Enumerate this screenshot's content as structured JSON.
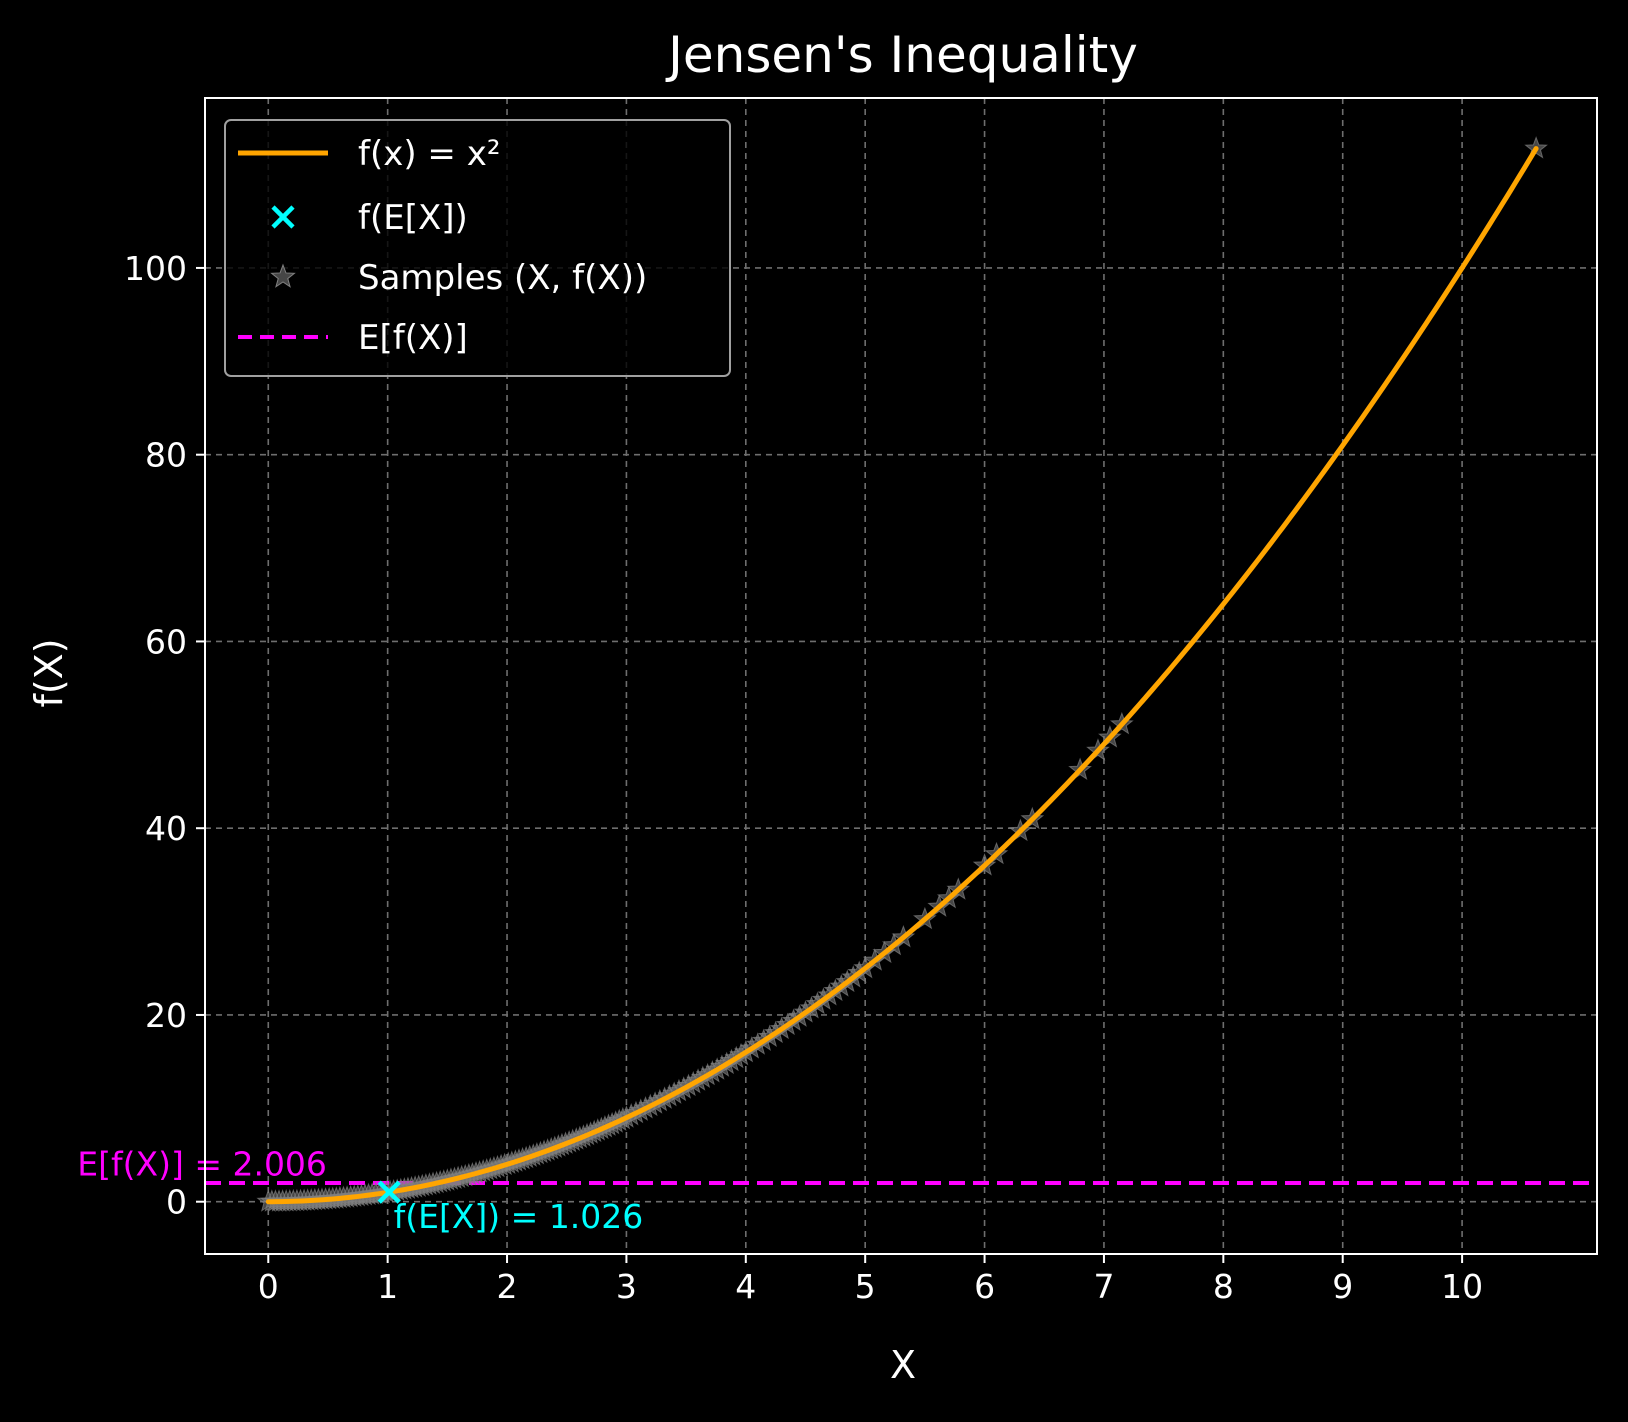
{
  "chart_data": {
    "type": "line",
    "title": "Jensen's Inequality",
    "xlabel": "X",
    "ylabel": "f(X)",
    "xlim": [
      -0.53,
      11.13
    ],
    "ylim": [
      -5.6,
      118.2
    ],
    "x_ticks": [
      0,
      1,
      2,
      3,
      4,
      5,
      6,
      7,
      8,
      9,
      10
    ],
    "y_ticks": [
      0,
      20,
      40,
      60,
      80,
      100
    ],
    "grid": true,
    "legend_position": "top-left",
    "colors": {
      "background": "#000000",
      "curve": "#ffa500",
      "expectation_point": "#00ffff",
      "samples": "#808080",
      "mean_line": "#ff00ff",
      "grid": "#6e6e6e",
      "text": "#ffffff"
    },
    "series": [
      {
        "name": "f(x) = x²",
        "kind": "line",
        "function": "x^2",
        "x_range": [
          0,
          10.62
        ]
      },
      {
        "name": "f(E[X])",
        "kind": "marker",
        "marker": "x",
        "points": [
          {
            "x": 1.013,
            "y": 1.026
          }
        ]
      },
      {
        "name": "Samples (X, f(X))",
        "kind": "scatter",
        "marker": "star",
        "x": [
          0.0,
          0.03,
          0.06,
          0.09,
          0.12,
          0.15,
          0.18,
          0.21,
          0.24,
          0.27,
          0.3,
          0.33,
          0.36,
          0.39,
          0.42,
          0.45,
          0.48,
          0.51,
          0.54,
          0.57,
          0.6,
          0.63,
          0.66,
          0.69,
          0.72,
          0.75,
          0.78,
          0.81,
          0.84,
          0.87,
          0.9,
          0.93,
          0.96,
          0.99,
          1.02,
          1.05,
          1.08,
          1.11,
          1.14,
          1.17,
          1.2,
          1.23,
          1.26,
          1.29,
          1.32,
          1.35,
          1.38,
          1.41,
          1.44,
          1.47,
          1.5,
          1.53,
          1.56,
          1.59,
          1.62,
          1.65,
          1.68,
          1.71,
          1.74,
          1.77,
          1.8,
          1.83,
          1.86,
          1.89,
          1.92,
          1.95,
          1.98,
          2.01,
          2.04,
          2.07,
          2.1,
          2.13,
          2.16,
          2.19,
          2.22,
          2.25,
          2.28,
          2.31,
          2.34,
          2.37,
          2.4,
          2.43,
          2.46,
          2.49,
          2.52,
          2.55,
          2.58,
          2.61,
          2.64,
          2.67,
          2.7,
          2.73,
          2.76,
          2.79,
          2.82,
          2.85,
          2.88,
          2.91,
          2.94,
          2.97,
          3.0,
          3.04,
          3.08,
          3.12,
          3.16,
          3.2,
          3.24,
          3.28,
          3.32,
          3.36,
          3.4,
          3.44,
          3.48,
          3.52,
          3.56,
          3.6,
          3.64,
          3.68,
          3.72,
          3.76,
          3.8,
          3.84,
          3.88,
          3.92,
          3.96,
          4.0,
          4.05,
          4.1,
          4.15,
          4.2,
          4.25,
          4.3,
          4.35,
          4.4,
          4.45,
          4.5,
          4.55,
          4.6,
          4.65,
          4.7,
          4.75,
          4.8,
          4.85,
          4.9,
          4.95,
          5.0,
          5.08,
          5.16,
          5.24,
          5.32,
          5.5,
          5.62,
          5.7,
          5.78,
          6.0,
          6.1,
          6.3,
          6.4,
          6.8,
          6.95,
          7.05,
          7.15,
          10.62
        ],
        "y": [
          0.0,
          0.0009,
          0.0036,
          0.0081,
          0.0144,
          0.0225,
          0.0324,
          0.0441,
          0.0576,
          0.0729,
          0.09,
          0.1089,
          0.1296,
          0.1521,
          0.1764,
          0.2025,
          0.2304,
          0.2601,
          0.2916,
          0.3249,
          0.36,
          0.3969,
          0.4356,
          0.4761,
          0.5184,
          0.5625,
          0.6084,
          0.6561,
          0.7056,
          0.7569,
          0.81,
          0.8649,
          0.9216,
          0.9801,
          1.0404,
          1.1025,
          1.1664,
          1.2321,
          1.2996,
          1.3689,
          1.44,
          1.5129,
          1.5876,
          1.6641,
          1.7424,
          1.8225,
          1.9044,
          1.9881,
          2.0736,
          2.1609,
          2.25,
          2.3409,
          2.4336,
          2.5281,
          2.6244,
          2.7225,
          2.8224,
          2.9241,
          3.0276,
          3.1329,
          3.24,
          3.3489,
          3.4596,
          3.5721,
          3.6864,
          3.8025,
          3.9204,
          4.0401,
          4.1616,
          4.2849,
          4.41,
          4.5369,
          4.6656,
          4.7961,
          4.9284,
          5.0625,
          5.1984,
          5.3361,
          5.4756,
          5.6169,
          5.76,
          5.9049,
          6.0516,
          6.2001,
          6.3504,
          6.5025,
          6.6564,
          6.8121,
          6.9696,
          7.1289,
          7.29,
          7.4529,
          7.6176,
          7.7841,
          7.9524,
          8.1225,
          8.2944,
          8.4681,
          8.6436,
          8.8209,
          9.0,
          9.2416,
          9.4864,
          9.7344,
          9.9856,
          10.24,
          10.4976,
          10.7584,
          11.0224,
          11.2896,
          11.56,
          11.8336,
          12.1104,
          12.3904,
          12.6736,
          12.96,
          13.2496,
          13.5424,
          13.8384,
          14.1376,
          14.44,
          14.7456,
          15.0544,
          15.3664,
          15.6816,
          16.0,
          16.4025,
          16.81,
          17.2225,
          17.64,
          18.0625,
          18.49,
          18.9225,
          19.36,
          19.8025,
          20.25,
          20.7025,
          21.16,
          21.6225,
          22.09,
          22.5625,
          23.04,
          23.5225,
          24.01,
          24.5025,
          25.0,
          25.8064,
          26.6256,
          27.4576,
          28.3024,
          30.25,
          31.5844,
          32.49,
          33.4084,
          36.0,
          37.21,
          39.69,
          40.96,
          46.24,
          48.3025,
          49.7025,
          51.1225,
          112.7844
        ]
      },
      {
        "name": "E[f(X)]",
        "kind": "hline",
        "y": 2.006
      }
    ],
    "annotations": [
      {
        "text": "E[f(X)] = 2.006",
        "x": -1.6,
        "y": 2.8,
        "color": "#ff00ff"
      },
      {
        "text": "f(E[X]) = 1.026",
        "x": 1.05,
        "y": -2.8,
        "color": "#00ffff"
      }
    ]
  }
}
